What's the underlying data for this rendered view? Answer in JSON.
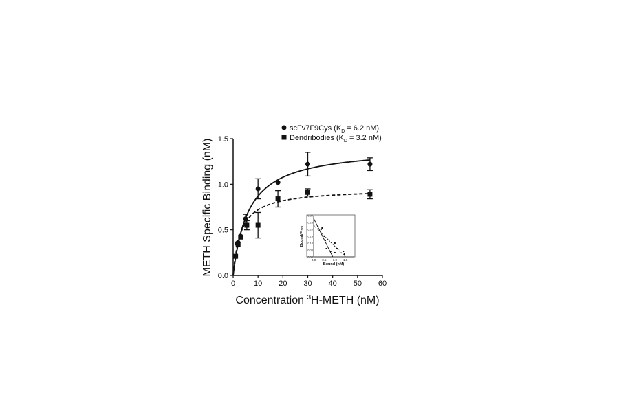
{
  "chart_data": {
    "type": "scatter",
    "xlabel": "Concentration ³H-METH (nM)",
    "xlabel_parts": {
      "pre": "Concentration ",
      "sup": "3",
      "post": "H-METH (nM)"
    },
    "ylabel": "METH Specific Binding (nM)",
    "xlim": [
      0,
      60
    ],
    "ylim": [
      0,
      1.5
    ],
    "xticks": [
      "0",
      "10",
      "20",
      "30",
      "40",
      "50",
      "60"
    ],
    "yticks": [
      "0.0",
      "0.5",
      "1.0",
      "1.5"
    ],
    "grid": false,
    "legend_position": "top-right",
    "series": [
      {
        "name": "scFv7F9Cys (KD = 6.2 nM)",
        "legend": {
          "pre": "scFv7F9Cys (K",
          "sub": "D",
          "post": " = 6.2 nM)"
        },
        "marker": "circle",
        "line": "solid",
        "kd": 6.2,
        "bmax": 1.41,
        "x": [
          1.5,
          2,
          3,
          5,
          10,
          18,
          30,
          55
        ],
        "y": [
          0.35,
          0.36,
          0.43,
          0.62,
          0.95,
          1.02,
          1.22,
          1.22
        ],
        "err": [
          0.02,
          0.02,
          0.03,
          0.05,
          0.11,
          0.01,
          0.13,
          0.07
        ]
      },
      {
        "name": "Dendribodies (KD = 3.2 nM)",
        "legend": {
          "pre": "Dendribodies (K",
          "sub": "D",
          "post": " = 3.2 nM)"
        },
        "marker": "square",
        "line": "dashed",
        "kd": 3.2,
        "bmax": 0.95,
        "x": [
          1,
          2,
          3,
          5.5,
          10,
          18,
          30,
          55
        ],
        "y": [
          0.21,
          0.34,
          0.42,
          0.55,
          0.55,
          0.84,
          0.91,
          0.89
        ],
        "err": [
          0.02,
          0.02,
          0.03,
          0.05,
          0.14,
          0.09,
          0.04,
          0.05
        ]
      }
    ],
    "inset": {
      "type": "scatter",
      "xlabel": "Bound (nM)",
      "ylabel": "Bound/Free",
      "xlim": [
        0,
        1.75
      ],
      "ylim": [
        0,
        0.3
      ],
      "xticks": [
        "0.0",
        "0.5",
        "1.0",
        "1.5"
      ],
      "yticks": [
        "0.00",
        "0.05",
        "0.10",
        "0.15",
        "0.20",
        "0.25",
        "0.30"
      ],
      "points": {
        "x": [
          0.2,
          0.35,
          0.4,
          0.5,
          0.55,
          0.6,
          0.8,
          1.0,
          1.1,
          1.0,
          1.4,
          1.45
        ],
        "y": [
          0.22,
          0.2,
          0.21,
          0.15,
          0.12,
          0.06,
          0.04,
          0.1,
          0.06,
          0.03,
          0.04,
          0.02
        ]
      },
      "lines": [
        {
          "style": "solid",
          "x": [
            0,
            0.9
          ],
          "y": [
            0.28,
            0
          ]
        },
        {
          "style": "dashed",
          "x": [
            0,
            1.5
          ],
          "y": [
            0.23,
            0
          ]
        }
      ]
    }
  }
}
